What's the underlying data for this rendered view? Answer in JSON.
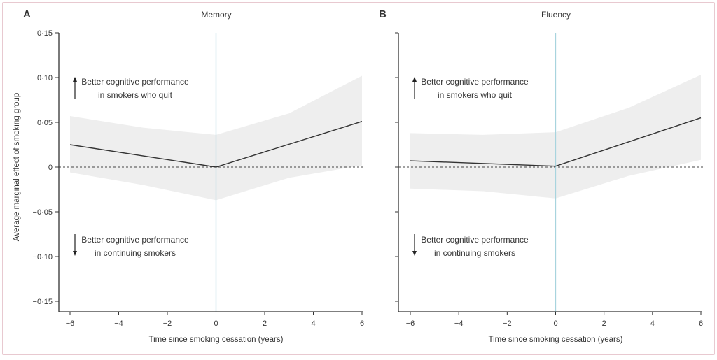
{
  "chart_data": [
    {
      "type": "line",
      "panel_label": "A",
      "title": "Memory",
      "xlabel": "Time since smoking cessation (years)",
      "ylabel": "Average marginal effect of smoking group",
      "xlim": [
        -6,
        6
      ],
      "ylim": [
        -0.15,
        0.15
      ],
      "xticks": [
        "−6",
        "−4",
        "−2",
        "0",
        "2",
        "4",
        "6"
      ],
      "xtick_values": [
        -6,
        -4,
        -2,
        0,
        2,
        4,
        6
      ],
      "yticks": [
        "0·15",
        "0·10",
        "0·05",
        "0",
        "−0·05",
        "−0·10",
        "−0·15"
      ],
      "ytick_values": [
        0.15,
        0.1,
        0.05,
        0,
        -0.05,
        -0.1,
        -0.15
      ],
      "reference_vline": 0,
      "reference_hline": 0,
      "line": {
        "x": [
          -6,
          0,
          6
        ],
        "y": [
          0.025,
          0.0,
          0.051
        ]
      },
      "ci_band": {
        "x": [
          -6,
          -3,
          0,
          3,
          6
        ],
        "upper": [
          0.057,
          0.044,
          0.036,
          0.06,
          0.102
        ],
        "lower": [
          -0.006,
          -0.02,
          -0.037,
          -0.012,
          0.002
        ]
      },
      "annotations": {
        "up": [
          "Better cognitive performance",
          "in smokers who quit"
        ],
        "down": [
          "Better cognitive performance",
          "in continuing smokers"
        ]
      }
    },
    {
      "type": "line",
      "panel_label": "B",
      "title": "Fluency",
      "xlabel": "Time since smoking cessation (years)",
      "xlim": [
        -6,
        6
      ],
      "ylim": [
        -0.15,
        0.15
      ],
      "xticks": [
        "−6",
        "−4",
        "−2",
        "0",
        "2",
        "4",
        "6"
      ],
      "xtick_values": [
        -6,
        -4,
        -2,
        0,
        2,
        4,
        6
      ],
      "ytick_values": [
        0.15,
        0.1,
        0.05,
        0,
        -0.05,
        -0.1,
        -0.15
      ],
      "reference_vline": 0,
      "reference_hline": 0,
      "line": {
        "x": [
          -6,
          0,
          6
        ],
        "y": [
          0.007,
          0.001,
          0.055
        ]
      },
      "ci_band": {
        "x": [
          -6,
          -3,
          0,
          3,
          6
        ],
        "upper": [
          0.038,
          0.036,
          0.039,
          0.066,
          0.103
        ],
        "lower": [
          -0.024,
          -0.027,
          -0.035,
          -0.01,
          0.008
        ]
      },
      "annotations": {
        "up": [
          "Better cognitive performance",
          "in smokers who quit"
        ],
        "down": [
          "Better cognitive performance",
          "in continuing smokers"
        ]
      }
    }
  ],
  "colors": {
    "band": "#eeeeee",
    "line": "#333333",
    "vline": "#a8d4de",
    "axis": "#333333"
  }
}
